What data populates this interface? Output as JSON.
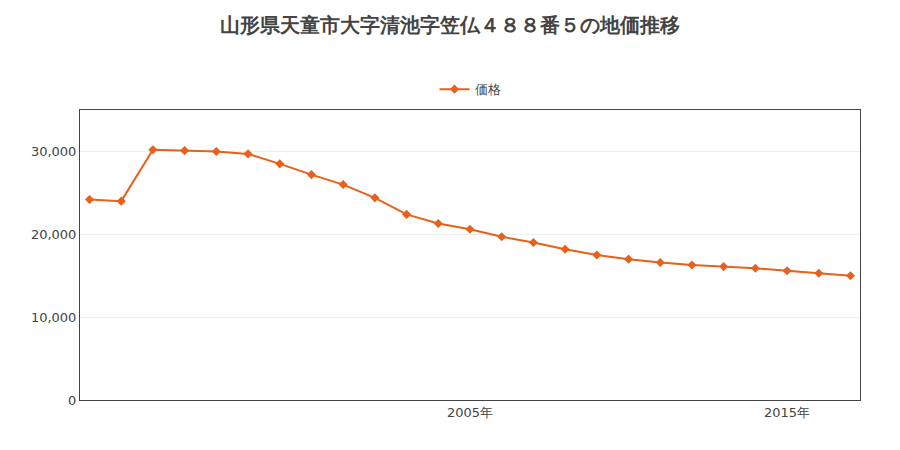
{
  "chart_data": {
    "type": "line",
    "title": "山形県天童市大字清池字笠仏４８８番５の地価推移",
    "x": [
      1993,
      1994,
      1995,
      1996,
      1997,
      1998,
      1999,
      2000,
      2001,
      2002,
      2003,
      2004,
      2005,
      2006,
      2007,
      2008,
      2009,
      2010,
      2011,
      2012,
      2013,
      2014,
      2015,
      2016,
      2017
    ],
    "series": [
      {
        "name": "価格",
        "color": "#e8601a",
        "marker": "diamond",
        "values": [
          24200,
          24000,
          30200,
          30100,
          30000,
          29700,
          28500,
          27200,
          26000,
          24400,
          22400,
          21300,
          20600,
          19700,
          19000,
          18200,
          17500,
          17000,
          16600,
          16300,
          16100,
          15900,
          15600,
          15300,
          15000
        ]
      }
    ],
    "xlim": [
      1992.7,
      2017.3
    ],
    "xticks": [
      {
        "value": 2005,
        "label": "2005年"
      },
      {
        "value": 2015,
        "label": "2015年"
      }
    ],
    "ylim": [
      0,
      35000
    ],
    "yticks": [
      0,
      {
        "value": 10000,
        "label": "10,000"
      },
      {
        "value": 20000,
        "label": "20,000"
      },
      {
        "value": 30000,
        "label": "30,000"
      }
    ],
    "grid": true,
    "legend": "top"
  }
}
